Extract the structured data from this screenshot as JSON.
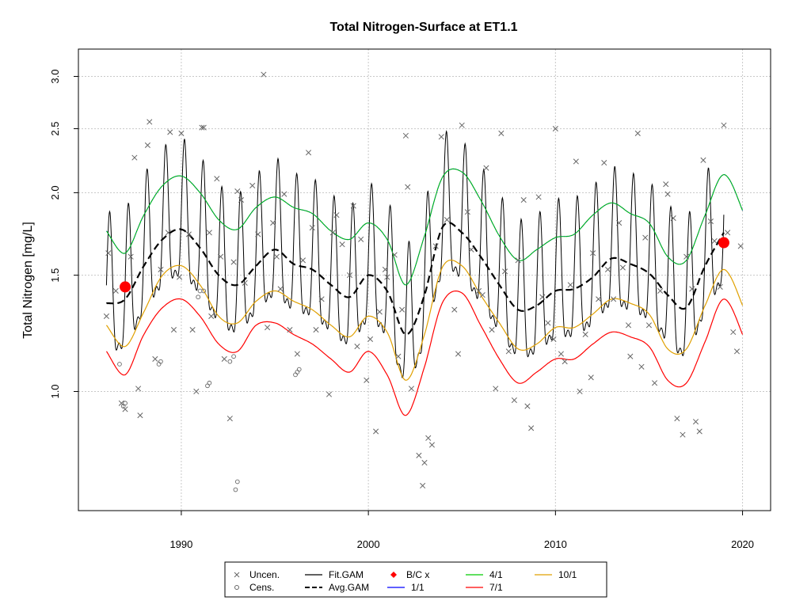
{
  "chart_data": {
    "type": "scatter",
    "title": "Total Nitrogen-Surface at ET1.1",
    "xlabel": "",
    "ylabel": "Total Nitrogen [mg/L]",
    "y_scale": "log",
    "xlim": [
      1984.5,
      2021.5
    ],
    "ylim": [
      0.66,
      3.3
    ],
    "x_ticks": [
      "1990",
      "2000",
      "2010",
      "2020"
    ],
    "y_ticks": [
      "1.0",
      "1.5",
      "2.0",
      "2.5",
      "3.0"
    ],
    "grid": true,
    "legend_position": "bottom",
    "legend": [
      {
        "label": "Uncen.",
        "color": "#555555"
      },
      {
        "label": "Cens.",
        "color": "#555555"
      },
      {
        "label": "Fit.GAM",
        "color": "#000000"
      },
      {
        "label": "Avg.GAM",
        "color": "#000000"
      },
      {
        "label": "B/C x",
        "color": "#ff0000"
      },
      {
        "label": "1/1",
        "color": "#0000ff"
      },
      {
        "label": "4/1",
        "color": "#00cc00"
      },
      {
        "label": "7/1",
        "color": "#ff0000"
      },
      {
        "label": "10/1",
        "color": "#e0a000"
      }
    ],
    "bc_points": [
      {
        "x": 1987.0,
        "y": 1.44
      },
      {
        "x": 2019.0,
        "y": 1.68
      }
    ],
    "avg_gam": {
      "x": [
        1986.0,
        1987.0,
        1988.0,
        1989.0,
        1990.0,
        1991.0,
        1992.0,
        1993.0,
        1994.0,
        1995.0,
        1996.0,
        1997.0,
        1998.0,
        1999.0,
        2000.0,
        2001.0,
        2002.0,
        2003.0,
        2004.0,
        2005.0,
        2006.0,
        2007.0,
        2008.0,
        2009.0,
        2010.0,
        2011.0,
        2012.0,
        2013.0,
        2014.0,
        2015.0,
        2016.0,
        2017.0,
        2018.0,
        2019.0
      ],
      "y": [
        1.36,
        1.38,
        1.55,
        1.7,
        1.76,
        1.65,
        1.5,
        1.45,
        1.55,
        1.64,
        1.56,
        1.53,
        1.45,
        1.39,
        1.5,
        1.42,
        1.22,
        1.4,
        1.78,
        1.74,
        1.6,
        1.45,
        1.33,
        1.35,
        1.42,
        1.43,
        1.49,
        1.59,
        1.56,
        1.51,
        1.4,
        1.34,
        1.55,
        1.74
      ]
    },
    "seasonal_curves": [
      {
        "name": "4/1",
        "color": "#00cc00",
        "x": [
          1986.0,
          1987.0,
          1988.0,
          1989.0,
          1990.0,
          1991.0,
          1992.0,
          1993.0,
          1994.0,
          1995.0,
          1996.0,
          1997.0,
          1998.0,
          1999.0,
          2000.0,
          2001.0,
          2002.0,
          2003.0,
          2004.0,
          2005.0,
          2006.0,
          2007.0,
          2008.0,
          2009.0,
          2010.0,
          2011.0,
          2012.0,
          2013.0,
          2014.0,
          2015.0,
          2016.0,
          2017.0,
          2018.0,
          2019.0,
          2020.0
        ],
        "y": [
          1.75,
          1.62,
          1.85,
          2.05,
          2.12,
          2.0,
          1.82,
          1.76,
          1.9,
          1.97,
          1.9,
          1.86,
          1.75,
          1.7,
          1.8,
          1.7,
          1.45,
          1.72,
          2.12,
          2.15,
          1.95,
          1.72,
          1.58,
          1.64,
          1.71,
          1.73,
          1.85,
          1.93,
          1.86,
          1.8,
          1.6,
          1.58,
          1.85,
          2.13,
          1.88
        ]
      },
      {
        "name": "10/1",
        "color": "#e0a000",
        "x": [
          1986.0,
          1987.0,
          1988.0,
          1989.0,
          1990.0,
          1991.0,
          1992.0,
          1993.0,
          1994.0,
          1995.0,
          1996.0,
          1997.0,
          1998.0,
          1999.0,
          2000.0,
          2001.0,
          2002.0,
          2003.0,
          2004.0,
          2005.0,
          2006.0,
          2007.0,
          2008.0,
          2009.0,
          2010.0,
          2011.0,
          2012.0,
          2013.0,
          2014.0,
          2015.0,
          2016.0,
          2017.0,
          2018.0,
          2019.0,
          2020.0
        ],
        "y": [
          1.26,
          1.17,
          1.32,
          1.5,
          1.55,
          1.45,
          1.3,
          1.27,
          1.37,
          1.42,
          1.37,
          1.33,
          1.26,
          1.21,
          1.3,
          1.23,
          1.04,
          1.22,
          1.55,
          1.55,
          1.4,
          1.27,
          1.16,
          1.18,
          1.25,
          1.25,
          1.31,
          1.38,
          1.36,
          1.31,
          1.16,
          1.16,
          1.35,
          1.53,
          1.35
        ]
      },
      {
        "name": "7/1",
        "color": "#ff0000",
        "x": [
          1986.0,
          1987.0,
          1988.0,
          1989.0,
          1990.0,
          1991.0,
          1992.0,
          1993.0,
          1994.0,
          1995.0,
          1996.0,
          1997.0,
          1998.0,
          1999.0,
          2000.0,
          2001.0,
          2002.0,
          2003.0,
          2004.0,
          2005.0,
          2006.0,
          2007.0,
          2008.0,
          2009.0,
          2010.0,
          2011.0,
          2012.0,
          2013.0,
          2014.0,
          2015.0,
          2016.0,
          2017.0,
          2018.0,
          2019.0,
          2020.0
        ],
        "y": [
          1.15,
          1.06,
          1.22,
          1.34,
          1.38,
          1.3,
          1.18,
          1.15,
          1.26,
          1.27,
          1.22,
          1.18,
          1.12,
          1.07,
          1.15,
          1.06,
          0.92,
          1.09,
          1.37,
          1.41,
          1.26,
          1.12,
          1.03,
          1.07,
          1.12,
          1.12,
          1.18,
          1.23,
          1.21,
          1.17,
          1.04,
          1.03,
          1.19,
          1.38,
          1.22
        ]
      }
    ],
    "uncensored": [
      [
        1986.0,
        1.3
      ],
      [
        1986.1,
        1.62
      ],
      [
        1986.5,
        1.42
      ],
      [
        1986.8,
        0.96
      ],
      [
        1987.0,
        0.94
      ],
      [
        1987.3,
        1.6
      ],
      [
        1987.5,
        2.26
      ],
      [
        1987.7,
        1.01
      ],
      [
        1987.8,
        0.92
      ],
      [
        1988.2,
        2.36
      ],
      [
        1988.3,
        2.56
      ],
      [
        1988.6,
        1.12
      ],
      [
        1988.9,
        1.53
      ],
      [
        1989.3,
        1.74
      ],
      [
        1989.4,
        2.47
      ],
      [
        1989.6,
        1.24
      ],
      [
        1989.9,
        1.49
      ],
      [
        1990.0,
        2.46
      ],
      [
        1990.4,
        1.73
      ],
      [
        1990.6,
        1.24
      ],
      [
        1990.8,
        1.0
      ],
      [
        1991.1,
        2.51
      ],
      [
        1991.2,
        2.51
      ],
      [
        1991.5,
        1.74
      ],
      [
        1991.6,
        1.3
      ],
      [
        1991.9,
        2.1
      ],
      [
        1992.1,
        1.6
      ],
      [
        1992.3,
        1.12
      ],
      [
        1992.6,
        0.91
      ],
      [
        1992.8,
        1.57
      ],
      [
        1993.0,
        2.01
      ],
      [
        1993.2,
        1.95
      ],
      [
        1993.4,
        1.46
      ],
      [
        1993.8,
        2.05
      ],
      [
        1994.1,
        1.73
      ],
      [
        1994.4,
        3.02
      ],
      [
        1994.6,
        1.25
      ],
      [
        1994.9,
        1.8
      ],
      [
        1995.1,
        1.6
      ],
      [
        1995.3,
        1.43
      ],
      [
        1995.5,
        1.99
      ],
      [
        1995.8,
        1.24
      ],
      [
        1996.2,
        1.14
      ],
      [
        1996.5,
        1.58
      ],
      [
        1996.8,
        2.3
      ],
      [
        1997.0,
        1.77
      ],
      [
        1997.2,
        1.24
      ],
      [
        1997.5,
        1.38
      ],
      [
        1997.9,
        0.99
      ],
      [
        1998.1,
        1.74
      ],
      [
        1998.3,
        1.85
      ],
      [
        1998.6,
        1.67
      ],
      [
        1999.0,
        1.5
      ],
      [
        1999.2,
        1.91
      ],
      [
        1999.4,
        1.17
      ],
      [
        1999.6,
        1.7
      ],
      [
        1999.9,
        1.04
      ],
      [
        2000.1,
        1.2
      ],
      [
        2000.4,
        0.87
      ],
      [
        2000.6,
        1.32
      ],
      [
        2000.9,
        1.53
      ],
      [
        2001.0,
        1.49
      ],
      [
        2001.4,
        1.61
      ],
      [
        2001.6,
        1.13
      ],
      [
        2001.8,
        1.33
      ],
      [
        2002.0,
        2.44
      ],
      [
        2002.1,
        2.04
      ],
      [
        2002.3,
        1.01
      ],
      [
        2002.7,
        0.8
      ],
      [
        2002.9,
        0.72
      ],
      [
        2003.0,
        0.78
      ],
      [
        2003.2,
        0.85
      ],
      [
        2003.4,
        0.83
      ],
      [
        2003.6,
        1.66
      ],
      [
        2003.9,
        2.43
      ],
      [
        2004.2,
        1.82
      ],
      [
        2004.6,
        1.33
      ],
      [
        2004.8,
        1.14
      ],
      [
        2005.0,
        2.53
      ],
      [
        2005.3,
        1.87
      ],
      [
        2005.5,
        1.64
      ],
      [
        2005.9,
        1.42
      ],
      [
        2006.1,
        1.4
      ],
      [
        2006.3,
        2.18
      ],
      [
        2006.6,
        1.24
      ],
      [
        2006.8,
        1.01
      ],
      [
        2007.1,
        2.46
      ],
      [
        2007.3,
        1.52
      ],
      [
        2007.5,
        1.15
      ],
      [
        2007.8,
        0.97
      ],
      [
        2008.0,
        1.58
      ],
      [
        2008.3,
        1.95
      ],
      [
        2008.5,
        0.95
      ],
      [
        2008.7,
        0.88
      ],
      [
        2009.1,
        1.97
      ],
      [
        2009.3,
        1.39
      ],
      [
        2009.6,
        1.27
      ],
      [
        2009.9,
        1.2
      ],
      [
        2010.0,
        2.5
      ],
      [
        2010.3,
        1.14
      ],
      [
        2010.5,
        1.11
      ],
      [
        2010.8,
        1.45
      ],
      [
        2011.1,
        2.23
      ],
      [
        2011.3,
        1.0
      ],
      [
        2011.6,
        1.22
      ],
      [
        2011.9,
        1.05
      ],
      [
        2012.0,
        1.62
      ],
      [
        2012.3,
        1.38
      ],
      [
        2012.6,
        2.22
      ],
      [
        2012.8,
        1.53
      ],
      [
        2013.1,
        1.38
      ],
      [
        2013.4,
        1.8
      ],
      [
        2013.6,
        1.54
      ],
      [
        2013.9,
        1.26
      ],
      [
        2014.0,
        1.13
      ],
      [
        2014.4,
        2.46
      ],
      [
        2014.6,
        1.09
      ],
      [
        2014.8,
        1.71
      ],
      [
        2015.0,
        1.26
      ],
      [
        2015.3,
        1.03
      ],
      [
        2015.6,
        1.42
      ],
      [
        2015.9,
        2.06
      ],
      [
        2016.0,
        1.99
      ],
      [
        2016.3,
        1.83
      ],
      [
        2016.5,
        0.91
      ],
      [
        2016.8,
        0.86
      ],
      [
        2017.0,
        1.6
      ],
      [
        2017.3,
        1.43
      ],
      [
        2017.5,
        0.9
      ],
      [
        2017.7,
        0.87
      ],
      [
        2017.9,
        2.24
      ],
      [
        2018.3,
        1.81
      ],
      [
        2018.5,
        1.69
      ],
      [
        2018.8,
        1.44
      ],
      [
        2019.0,
        2.53
      ],
      [
        2019.2,
        1.74
      ],
      [
        2019.5,
        1.23
      ],
      [
        2019.7,
        1.15
      ],
      [
        2019.9,
        1.66
      ]
    ],
    "censored": [
      [
        1986.7,
        1.1
      ],
      [
        1986.9,
        0.95
      ],
      [
        1987.0,
        0.96
      ],
      [
        1988.8,
        1.1
      ],
      [
        1988.9,
        1.11
      ],
      [
        1990.9,
        1.39
      ],
      [
        1991.0,
        1.42
      ],
      [
        1991.2,
        1.42
      ],
      [
        1991.4,
        1.02
      ],
      [
        1991.5,
        1.03
      ],
      [
        1992.6,
        1.11
      ],
      [
        1992.8,
        1.13
      ],
      [
        1992.9,
        0.71
      ],
      [
        1993.0,
        0.73
      ],
      [
        1996.1,
        1.06
      ],
      [
        1996.2,
        1.07
      ],
      [
        1996.3,
        1.08
      ]
    ]
  }
}
